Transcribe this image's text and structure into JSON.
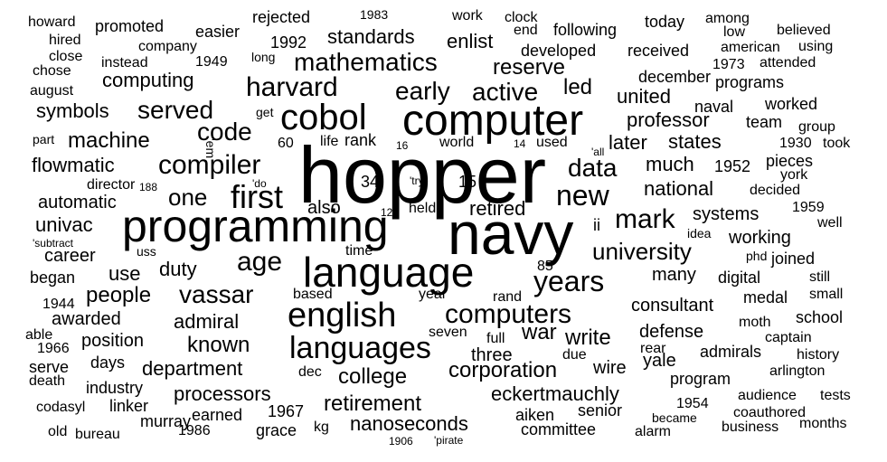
{
  "text_color": "#000000",
  "background_color": "#ffffff",
  "words": [
    {
      "text": "hopper",
      "weight": 100
    },
    {
      "text": "navy",
      "weight": 74
    },
    {
      "text": "computer",
      "weight": 52
    },
    {
      "text": "language",
      "weight": 52
    },
    {
      "text": "programming",
      "weight": 56
    },
    {
      "text": "cobol",
      "weight": 44
    },
    {
      "text": "english",
      "weight": 40
    },
    {
      "text": "languages",
      "weight": 38
    },
    {
      "text": "first",
      "weight": 38
    },
    {
      "text": "years",
      "weight": 34
    },
    {
      "text": "new",
      "weight": 34
    },
    {
      "text": "mark",
      "weight": 34
    },
    {
      "text": "computers",
      "weight": 32
    },
    {
      "text": "harvard",
      "weight": 32
    },
    {
      "text": "compiler",
      "weight": 30
    },
    {
      "text": "age",
      "weight": 30
    },
    {
      "text": "data",
      "weight": 30
    },
    {
      "text": "mathematics",
      "weight": 30
    },
    {
      "text": "early",
      "weight": 30
    },
    {
      "text": "active",
      "weight": 30
    },
    {
      "text": "vassar",
      "weight": 30
    },
    {
      "text": "served",
      "weight": 28
    },
    {
      "text": "code",
      "weight": 28
    },
    {
      "text": "one",
      "weight": 28
    },
    {
      "text": "university",
      "weight": 26
    },
    {
      "text": "college",
      "weight": 26
    },
    {
      "text": "corporation",
      "weight": 26
    },
    {
      "text": "retirement",
      "weight": 26
    },
    {
      "text": "known",
      "weight": 26
    },
    {
      "text": "war",
      "weight": 26
    },
    {
      "text": "write",
      "weight": 26
    },
    {
      "text": "machine",
      "weight": 26
    },
    {
      "text": "reserve",
      "weight": 24
    },
    {
      "text": "national",
      "weight": 24
    },
    {
      "text": "people",
      "weight": 24
    },
    {
      "text": "admiral",
      "weight": 24
    },
    {
      "text": "department",
      "weight": 24
    },
    {
      "text": "processors",
      "weight": 24
    },
    {
      "text": "nanoseconds",
      "weight": 24
    },
    {
      "text": "eckertmauchly",
      "weight": 24
    },
    {
      "text": "led",
      "weight": 24
    },
    {
      "text": "duty",
      "weight": 24
    },
    {
      "text": "much",
      "weight": 22
    },
    {
      "text": "flowmatic",
      "weight": 22
    },
    {
      "text": "automatic",
      "weight": 22
    },
    {
      "text": "standards",
      "weight": 22
    },
    {
      "text": "professor",
      "weight": 22
    },
    {
      "text": "united",
      "weight": 22
    },
    {
      "text": "states",
      "weight": 22
    },
    {
      "text": "later",
      "weight": 22
    },
    {
      "text": "career",
      "weight": 22
    },
    {
      "text": "retired",
      "weight": 22
    },
    {
      "text": "use",
      "weight": 22
    },
    {
      "text": "awarded",
      "weight": 22
    },
    {
      "text": "position",
      "weight": 22
    },
    {
      "text": "systems",
      "weight": 22
    },
    {
      "text": "working",
      "weight": 22
    },
    {
      "text": "many",
      "weight": 22
    },
    {
      "text": "consultant",
      "weight": 22
    },
    {
      "text": "defense",
      "weight": 22
    },
    {
      "text": "computing",
      "weight": 22
    },
    {
      "text": "symbols",
      "weight": 22
    },
    {
      "text": "univac",
      "weight": 22
    },
    {
      "text": "also",
      "weight": 22
    },
    {
      "text": "three",
      "weight": 22
    },
    {
      "text": "yale",
      "weight": 22
    },
    {
      "text": "wire",
      "weight": 22
    },
    {
      "text": "enlist",
      "weight": 20
    },
    {
      "text": "1952",
      "weight": 18
    },
    {
      "text": "rank",
      "weight": 18
    },
    {
      "text": "1992",
      "weight": 18
    },
    {
      "text": "1967",
      "weight": 18
    },
    {
      "text": "grace",
      "weight": 18
    },
    {
      "text": "moth",
      "weight": 18
    },
    {
      "text": "school",
      "weight": 18
    },
    {
      "text": "worked",
      "weight": 18
    },
    {
      "text": "naval",
      "weight": 18
    },
    {
      "text": "team",
      "weight": 18
    },
    {
      "text": "promoted",
      "weight": 18
    },
    {
      "text": "easier",
      "weight": 18
    },
    {
      "text": "rejected",
      "weight": 18
    },
    {
      "text": "developed",
      "weight": 18
    },
    {
      "text": "received",
      "weight": 18
    },
    {
      "text": "following",
      "weight": 18
    },
    {
      "text": "today",
      "weight": 18
    },
    {
      "text": "decided",
      "weight": 18
    },
    {
      "text": "joined",
      "weight": 18
    },
    {
      "text": "pieces",
      "weight": 18
    },
    {
      "text": "medal",
      "weight": 18
    },
    {
      "text": "digital",
      "weight": 18
    },
    {
      "text": "admirals",
      "weight": 18
    },
    {
      "text": "program",
      "weight": 18
    },
    {
      "text": "aiken",
      "weight": 18
    },
    {
      "text": "senior",
      "weight": 18
    },
    {
      "text": "committee",
      "weight": 18
    },
    {
      "text": "earned",
      "weight": 18
    },
    {
      "text": "murray",
      "weight": 18
    },
    {
      "text": "industry",
      "weight": 18
    },
    {
      "text": "linker",
      "weight": 18
    },
    {
      "text": "serve",
      "weight": 18
    },
    {
      "text": "days",
      "weight": 18
    },
    {
      "text": "began",
      "weight": 18
    },
    {
      "text": "december",
      "weight": 18
    },
    {
      "text": "programs",
      "weight": 16
    },
    {
      "text": "company",
      "weight": 16
    },
    {
      "text": "instead",
      "weight": 16
    },
    {
      "text": "1949",
      "weight": 16
    },
    {
      "text": "world",
      "weight": 16
    },
    {
      "text": "used",
      "weight": 16
    },
    {
      "text": "end",
      "weight": 16
    },
    {
      "text": "work",
      "weight": 16
    },
    {
      "text": "director",
      "weight": 16
    },
    {
      "text": "year",
      "weight": 16
    },
    {
      "text": "rand",
      "weight": 16
    },
    {
      "text": "based",
      "weight": 16
    },
    {
      "text": "dec",
      "weight": 16
    },
    {
      "text": "seven",
      "weight": 16
    },
    {
      "text": "full",
      "weight": 16
    },
    {
      "text": "due",
      "weight": 16
    },
    {
      "text": "1930",
      "weight": 16
    },
    {
      "text": "1959",
      "weight": 16
    },
    {
      "text": "1954",
      "weight": 16
    },
    {
      "text": "1973",
      "weight": 16
    },
    {
      "text": "1944",
      "weight": 16
    },
    {
      "text": "1966",
      "weight": 16
    },
    {
      "text": "1986",
      "weight": 16
    },
    {
      "text": "1983",
      "weight": 14
    },
    {
      "text": "rear",
      "weight": 16
    },
    {
      "text": "became",
      "weight": 16
    },
    {
      "text": "alarm",
      "weight": 16
    },
    {
      "text": "business",
      "weight": 16
    },
    {
      "text": "months",
      "weight": 16
    },
    {
      "text": "coauthored",
      "weight": 16
    },
    {
      "text": "audience",
      "weight": 16
    },
    {
      "text": "tests",
      "weight": 16
    },
    {
      "text": "arlington",
      "weight": 16
    },
    {
      "text": "history",
      "weight": 16
    },
    {
      "text": "captain",
      "weight": 16
    },
    {
      "text": "small",
      "weight": 16
    },
    {
      "text": "still",
      "weight": 16
    },
    {
      "text": "phd",
      "weight": 16
    },
    {
      "text": "idea",
      "weight": 16
    },
    {
      "text": "well",
      "weight": 16
    },
    {
      "text": "york",
      "weight": 16
    },
    {
      "text": "took",
      "weight": 16
    },
    {
      "text": "group",
      "weight": 16
    },
    {
      "text": "attended",
      "weight": 16
    },
    {
      "text": "american",
      "weight": 16
    },
    {
      "text": "using",
      "weight": 16
    },
    {
      "text": "believed",
      "weight": 16
    },
    {
      "text": "among",
      "weight": 16
    },
    {
      "text": "low",
      "weight": 16
    },
    {
      "text": "clock",
      "weight": 16
    },
    {
      "text": "howard",
      "weight": 16
    },
    {
      "text": "hired",
      "weight": 16
    },
    {
      "text": "close",
      "weight": 16
    },
    {
      "text": "chose",
      "weight": 16
    },
    {
      "text": "august",
      "weight": 16
    },
    {
      "text": "part",
      "weight": 16
    },
    {
      "text": "long",
      "weight": 14
    },
    {
      "text": "get",
      "weight": 14
    },
    {
      "text": "life",
      "weight": 16
    },
    {
      "text": "60",
      "weight": 16
    },
    {
      "text": "34",
      "weight": 18
    },
    {
      "text": "15",
      "weight": 18
    },
    {
      "text": "85",
      "weight": 16
    },
    {
      "text": "ii",
      "weight": 18
    },
    {
      "text": "held",
      "weight": 16
    },
    {
      "text": "time",
      "weight": 16
    },
    {
      "text": "uss",
      "weight": 14
    },
    {
      "text": "kg",
      "weight": 16
    },
    {
      "text": "codasyl",
      "weight": 16
    },
    {
      "text": "bureau",
      "weight": 16
    },
    {
      "text": "old",
      "weight": 16
    },
    {
      "text": "death",
      "weight": 16
    },
    {
      "text": "able",
      "weight": 16
    },
    {
      "text": "'em",
      "weight": 14
    },
    {
      "text": "'do",
      "weight": 12
    },
    {
      "text": "'try",
      "weight": 12
    },
    {
      "text": "'all",
      "weight": 12
    },
    {
      "text": "'subtract",
      "weight": 12
    },
    {
      "text": "'pirate",
      "weight": 12
    },
    {
      "text": "188",
      "weight": 12
    },
    {
      "text": "120",
      "weight": 12
    },
    {
      "text": "16",
      "weight": 12
    },
    {
      "text": "14",
      "weight": 12
    },
    {
      "text": "1906",
      "weight": 12
    }
  ]
}
